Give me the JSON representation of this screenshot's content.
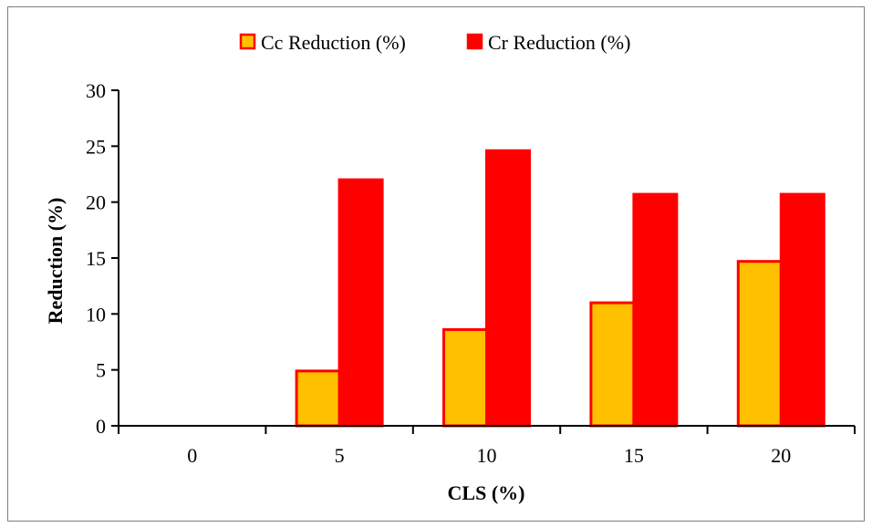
{
  "chart_data": {
    "type": "bar",
    "categories": [
      "0",
      "5",
      "10",
      "15",
      "20"
    ],
    "series": [
      {
        "name": "Cc Reduction (%)",
        "values": [
          0,
          4.9,
          8.6,
          11.0,
          14.7
        ],
        "fill": "#FFC000",
        "stroke": "#FF0000"
      },
      {
        "name": "Cr Reduction (%)",
        "values": [
          0,
          22.0,
          24.6,
          20.7,
          20.7
        ],
        "fill": "#FF0000",
        "stroke": "#FF0000"
      }
    ],
    "title": "",
    "xlabel": "CLS (%)",
    "ylabel": "Reduction (%)",
    "ylim": [
      0,
      30
    ],
    "yticks": [
      0,
      5,
      10,
      15,
      20,
      25,
      30
    ],
    "grid": false,
    "legend_position": "top"
  }
}
